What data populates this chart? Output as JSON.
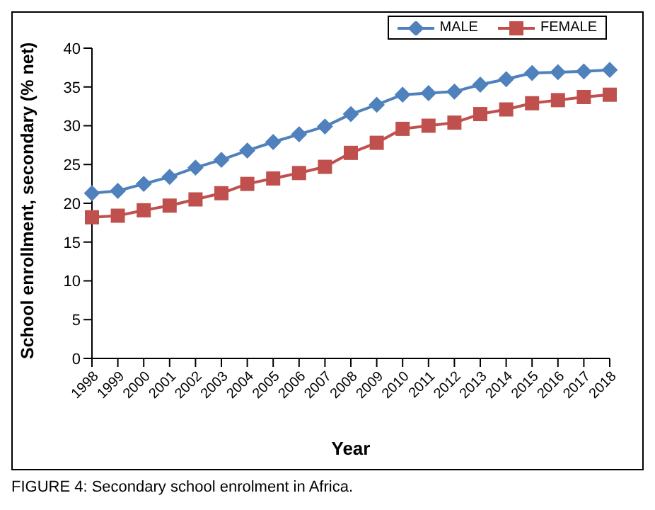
{
  "chart_data": {
    "type": "line",
    "xlabel": "Year",
    "ylabel": "School enrollment, secondary (% net)",
    "annotations": [
      "FIGURE 4:  Secondary school enrolment in Africa."
    ],
    "categories": [
      "1998",
      "1999",
      "2000",
      "2001",
      "2002",
      "2003",
      "2004",
      "2005",
      "2006",
      "2007",
      "2008",
      "2009",
      "2010",
      "2011",
      "2012",
      "2013",
      "2014",
      "2015",
      "2016",
      "2017",
      "2018"
    ],
    "series": [
      {
        "name": "MALE",
        "color": "#4f81bd",
        "marker": "diamond",
        "values": [
          21.3,
          21.6,
          22.5,
          23.4,
          24.6,
          25.6,
          26.8,
          27.9,
          28.9,
          29.9,
          31.5,
          32.7,
          34.0,
          34.2,
          34.4,
          35.3,
          36.0,
          36.8,
          36.9,
          37.0,
          37.2
        ]
      },
      {
        "name": "FEMALE",
        "color": "#c0504d",
        "marker": "square",
        "values": [
          18.2,
          18.4,
          19.1,
          19.7,
          20.5,
          21.3,
          22.5,
          23.2,
          23.9,
          24.7,
          26.5,
          27.8,
          29.6,
          30.0,
          30.4,
          31.5,
          32.1,
          32.9,
          33.3,
          33.7,
          34.0
        ]
      }
    ],
    "ylim": [
      0,
      40
    ],
    "yticks": [
      0,
      5,
      10,
      15,
      20,
      25,
      30,
      35,
      40
    ],
    "grid": false,
    "legend": "top right"
  }
}
